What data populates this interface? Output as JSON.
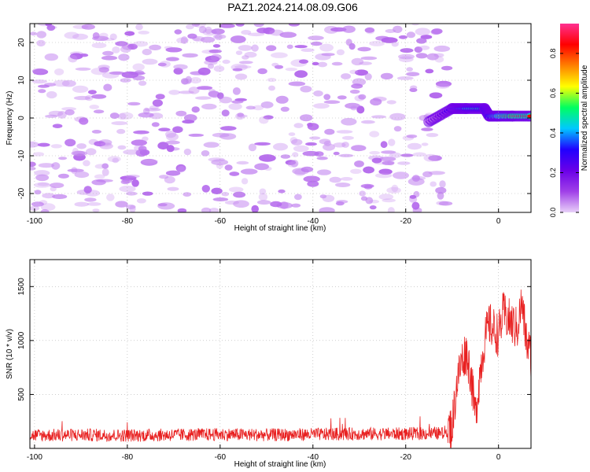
{
  "title": "PAZ1.2024.214.08.09.G06",
  "chart_data": [
    {
      "type": "heatmap",
      "xlabel": "Height of straight line (km)",
      "ylabel": "Frequency (Hz)",
      "xlim": [
        -101,
        7
      ],
      "ylim": [
        -25,
        25
      ],
      "xticks": [
        -100,
        -80,
        -60,
        -40,
        -20,
        0
      ],
      "yticks": [
        -20,
        -10,
        0,
        10,
        20
      ],
      "colorbar": {
        "label": "Normalized spectral amplitude",
        "range": [
          0,
          0.95
        ],
        "ticks": [
          0.0,
          0.2,
          0.4,
          0.6,
          0.8
        ],
        "colormap": [
          "#e8d0f8",
          "#a040e8",
          "#6a00e8",
          "#2000ff",
          "#00c8ff",
          "#00ff60",
          "#ffff00",
          "#ff8000",
          "#ff0000",
          "#ff3090"
        ]
      },
      "noise_region_km": [
        -101,
        -11
      ],
      "noise_amplitude_range": [
        0.0,
        0.15
      ],
      "signal_track": [
        {
          "x": -15,
          "freq": -1,
          "amplitude": 0.1
        },
        {
          "x": -10,
          "freq": 2.5,
          "amplitude": 0.3
        },
        {
          "x": -7,
          "freq": 2.5,
          "amplitude": 0.45
        },
        {
          "x": -3,
          "freq": 2.5,
          "amplitude": 0.5
        },
        {
          "x": -2,
          "freq": 0.5,
          "amplitude": 0.55
        },
        {
          "x": 0,
          "freq": 0.5,
          "amplitude": 0.75
        },
        {
          "x": 3,
          "freq": 0.5,
          "amplitude": 0.9
        },
        {
          "x": 7,
          "freq": 0.5,
          "amplitude": 0.85
        }
      ]
    },
    {
      "type": "line",
      "xlabel": "Height of straight line (km)",
      "ylabel": "SNR (10 * v/v)",
      "xlim": [
        -101,
        7
      ],
      "ylim": [
        0,
        1750
      ],
      "xticks": [
        -100,
        -80,
        -60,
        -40,
        -20,
        0
      ],
      "yticks": [
        500,
        1000,
        1500
      ],
      "series": [
        {
          "color": "#e82020",
          "x": [
            -101,
            -90,
            -80,
            -70,
            -60,
            -50,
            -40,
            -30,
            -20,
            -12,
            -10,
            -9,
            -8,
            -7,
            -6,
            -5,
            -4,
            -3,
            -2,
            -1,
            0,
            1,
            2,
            3,
            4,
            5,
            6,
            7
          ],
          "y": [
            120,
            125,
            120,
            125,
            130,
            125,
            130,
            135,
            135,
            140,
            200,
            600,
            800,
            900,
            700,
            300,
            700,
            1000,
            1150,
            1100,
            1050,
            1250,
            1200,
            1150,
            1100,
            1350,
            1000,
            850
          ],
          "noise_amplitude": 60
        }
      ]
    }
  ]
}
